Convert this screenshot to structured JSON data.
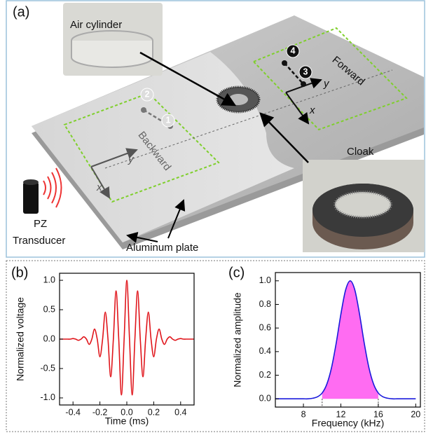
{
  "panel_a": {
    "label": "(a)",
    "air_cylinder": "Air cylinder",
    "forward": "Forward",
    "backward": "Backward",
    "cloak": "Cloak",
    "transducer": [
      "PZ",
      "Transducer"
    ],
    "plate": "Aluminum plate",
    "points": [
      "1",
      "2",
      "3",
      "4"
    ],
    "axes": {
      "x": "x",
      "y": "y"
    }
  },
  "chart_data": [
    {
      "type": "line",
      "label": "(b)",
      "x_label": "Time (ms)",
      "y_label": "Normalized voltage",
      "x": [
        -0.5,
        -0.48,
        -0.46,
        -0.44,
        -0.42,
        -0.4,
        -0.38,
        -0.36,
        -0.34,
        -0.32,
        -0.3,
        -0.28,
        -0.26,
        -0.24,
        -0.22,
        -0.2,
        -0.18,
        -0.16,
        -0.14,
        -0.12,
        -0.1,
        -0.08,
        -0.06,
        -0.04,
        -0.02,
        0,
        0.02,
        0.04,
        0.06,
        0.08,
        0.1,
        0.12,
        0.14,
        0.16,
        0.18,
        0.2,
        0.22,
        0.24,
        0.26,
        0.28,
        0.3,
        0.32,
        0.34,
        0.36,
        0.38,
        0.4,
        0.42,
        0.44,
        0.46,
        0.48,
        0.5
      ],
      "series": [
        {
          "color": "#e0141a",
          "values": [
            0,
            0,
            0,
            0,
            0,
            0.01,
            0,
            -0.02,
            0,
            0.04,
            0,
            -0.09,
            0,
            0.17,
            0,
            -0.3,
            0,
            0.46,
            0,
            -0.64,
            0,
            0.82,
            0,
            -0.95,
            0,
            1,
            0,
            -0.95,
            0,
            0.82,
            0,
            -0.64,
            0,
            0.46,
            0,
            -0.3,
            0,
            0.17,
            0,
            -0.09,
            0,
            0.04,
            0,
            -0.02,
            0,
            0.01,
            0,
            0,
            0,
            0,
            0
          ]
        }
      ],
      "xlim": [
        -0.5,
        0.5
      ],
      "xticks": [
        -0.4,
        -0.2,
        {
          "value": 0,
          "label": "0.0"
        },
        0.2,
        0.4
      ],
      "ylim": [
        -1.12,
        1.12
      ],
      "yticks": [
        {
          "value": -1,
          "label": "-1.0"
        },
        -0.5,
        {
          "value": 0,
          "label": "0.0"
        },
        0.5,
        {
          "value": 1,
          "label": "1.0"
        }
      ]
    },
    {
      "type": "line",
      "label": "(c)",
      "x_label": "Frequency (kHz)",
      "y_label": "Normalized amplitude",
      "x": [
        5,
        5.5,
        6,
        6.5,
        7,
        7.5,
        8,
        8.5,
        9,
        9.5,
        10,
        10.5,
        11,
        11.5,
        12,
        12.5,
        13,
        13.5,
        14,
        14.5,
        15,
        15.5,
        16,
        16.5,
        17,
        17.5,
        18,
        18.5,
        19,
        19.5,
        20
      ],
      "series": [
        {
          "color": "#1a1adc",
          "values": [
            0,
            0,
            0,
            0,
            0,
            0,
            0,
            0,
            0.005,
            0.017,
            0.049,
            0.124,
            0.263,
            0.471,
            0.716,
            0.92,
            1,
            0.92,
            0.716,
            0.471,
            0.263,
            0.124,
            0.049,
            0.017,
            0.005,
            0,
            0,
            0,
            0,
            0,
            0
          ]
        }
      ],
      "fill_range": [
        10,
        16
      ],
      "fill_color": "#ff6cf2",
      "xlim": [
        5,
        20.5
      ],
      "xticks": [
        8,
        12,
        16,
        20
      ],
      "ylim": [
        -0.07,
        1.07
      ],
      "yticks": [
        {
          "value": 0,
          "label": "0.0"
        },
        0.2,
        0.4,
        0.6,
        0.8,
        {
          "value": 1,
          "label": "1.0"
        }
      ]
    }
  ]
}
